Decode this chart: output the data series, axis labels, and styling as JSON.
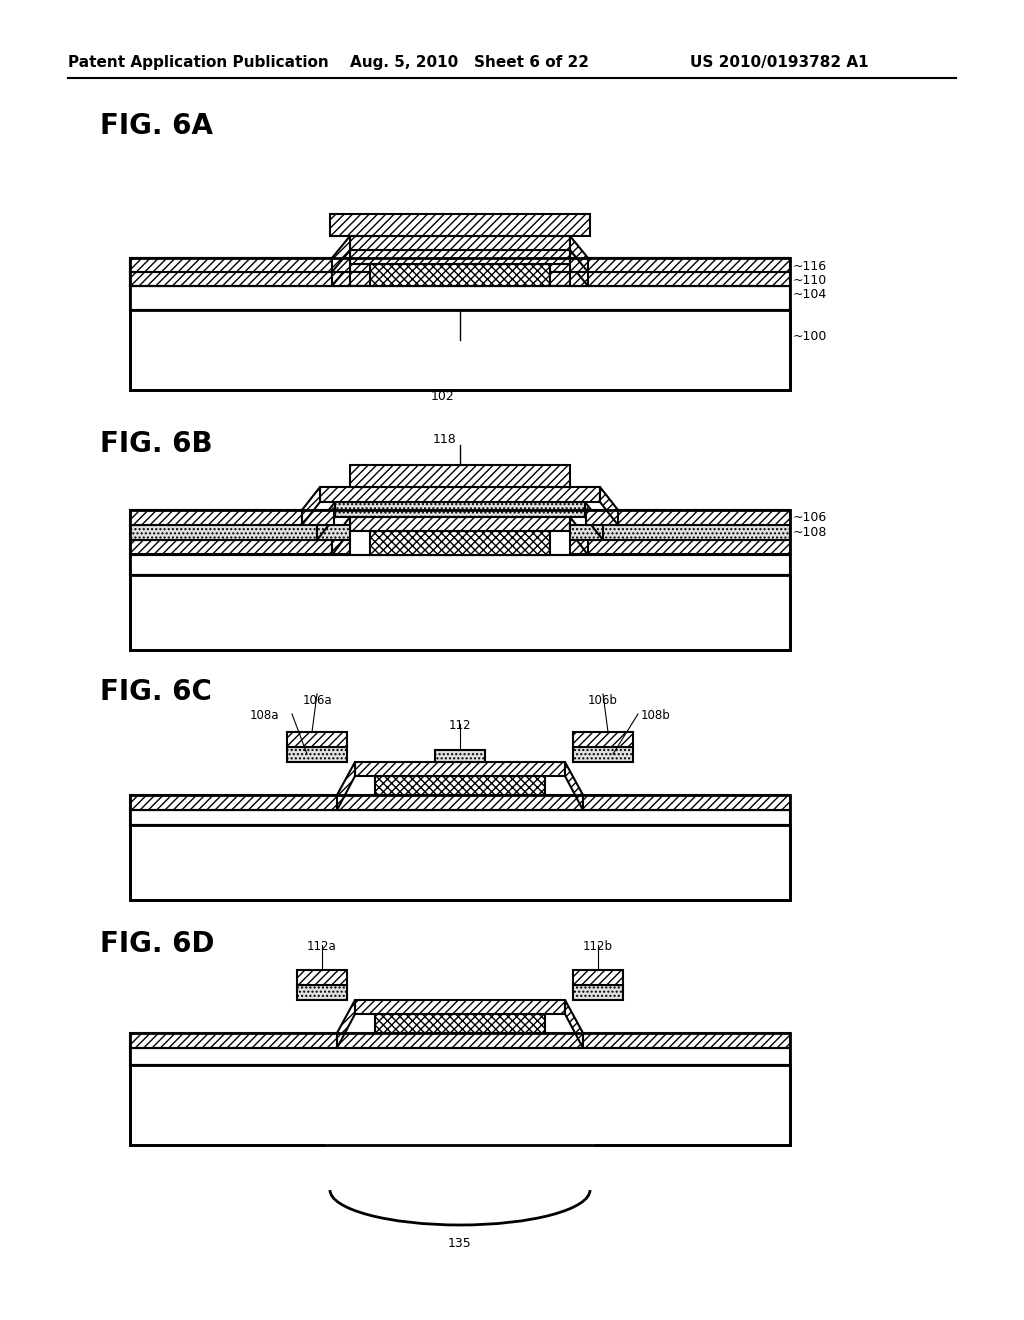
{
  "header_left": "Patent Application Publication",
  "header_mid": "Aug. 5, 2010   Sheet 6 of 22",
  "header_right": "US 2010/0193782 A1",
  "background_color": "#ffffff"
}
